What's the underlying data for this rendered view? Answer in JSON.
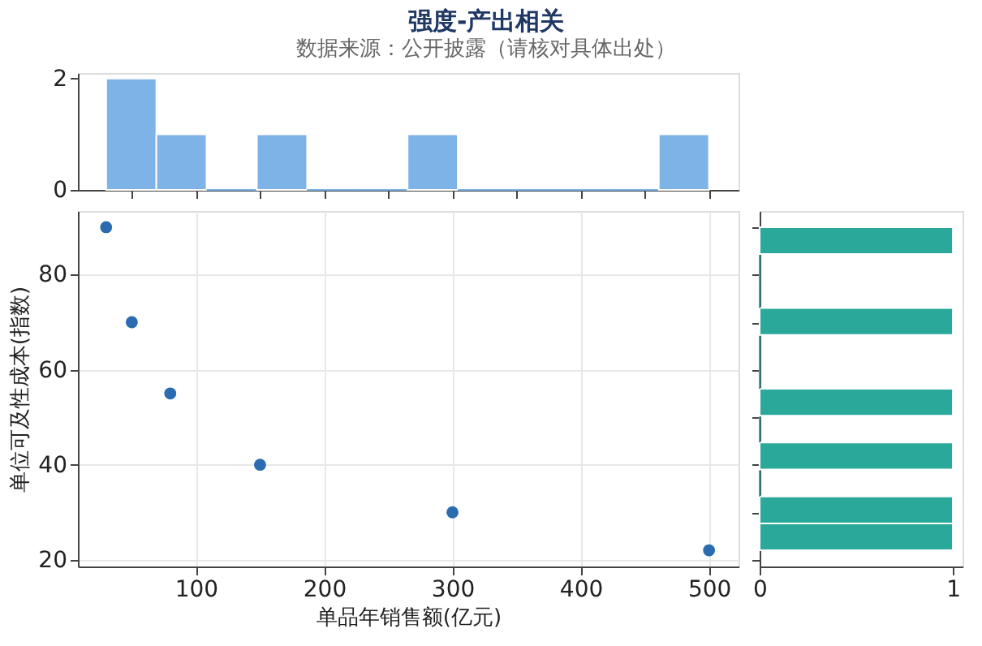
{
  "chart_data": [
    {
      "type": "histogram",
      "title": "强度-产出相关",
      "subtitle": "数据来源：公开披露（请核对具体出处）",
      "bins": [
        30,
        69.17,
        108.33,
        147.5,
        186.67,
        225.83,
        265,
        304.17,
        343.33,
        382.5,
        421.67,
        460.83,
        500
      ],
      "values": [
        2,
        1,
        0,
        1,
        0,
        0,
        1,
        0,
        0,
        0,
        0,
        1
      ],
      "color": "#7eb3e8",
      "xlim": [
        8,
        523
      ],
      "ylim": [
        0,
        2.1
      ],
      "yticks": [
        0,
        2
      ],
      "tick_labels": "y",
      "grid": false
    },
    {
      "type": "scatter",
      "x": [
        30,
        50,
        80,
        150,
        300,
        500
      ],
      "values": [
        90,
        70,
        55,
        40,
        30,
        22
      ],
      "color": "#2b6cb0",
      "xlabel": "单品年销售额(亿元)",
      "ylabel": "单位可及性成本(指数)",
      "xlim": [
        8,
        523
      ],
      "ylim": [
        18.6,
        93.4
      ],
      "xticks": [
        100,
        200,
        300,
        400,
        500
      ],
      "yticks": [
        20,
        40,
        60,
        80
      ],
      "grid": true,
      "marker": "circle"
    },
    {
      "type": "histogram",
      "orientation": "horizontal",
      "bins": [
        22,
        27.67,
        33.33,
        39,
        44.67,
        50.33,
        56,
        61.67,
        67.33,
        73,
        78.67,
        84.33,
        90
      ],
      "values": [
        1,
        1,
        0,
        1,
        0,
        1,
        0,
        0,
        1,
        0,
        0,
        1
      ],
      "color": "#2aa89a",
      "xlim": [
        0,
        1.05
      ],
      "xticks": [
        0,
        1
      ],
      "ylim": [
        18.6,
        93.4
      ],
      "tick_labels": "x",
      "grid": false
    }
  ]
}
